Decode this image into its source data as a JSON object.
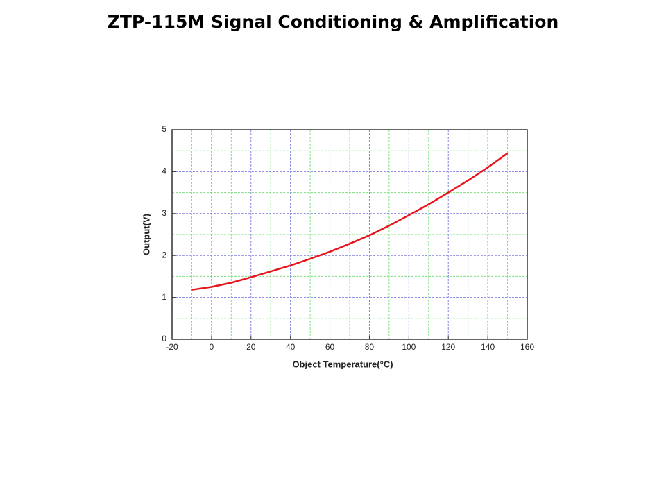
{
  "chart_data": {
    "type": "line",
    "title": "ZTP-115M Signal Conditioning & Amplification",
    "x_label": "Object Temperature(°C)",
    "y_label": "Output(V)",
    "x": [
      -10,
      0,
      10,
      20,
      30,
      40,
      50,
      60,
      70,
      80,
      90,
      100,
      110,
      120,
      130,
      140,
      150
    ],
    "series": [
      {
        "name": "Output",
        "color": "#e8141c",
        "values": [
          1.18,
          1.25,
          1.35,
          1.48,
          1.62,
          1.76,
          1.92,
          2.09,
          2.28,
          2.48,
          2.71,
          2.96,
          3.22,
          3.5,
          3.79,
          4.1,
          4.44
        ]
      }
    ],
    "xlim": [
      -20,
      160
    ],
    "xticks": [
      -20,
      0,
      20,
      40,
      60,
      80,
      100,
      120,
      140,
      160
    ],
    "ylim": [
      0,
      5
    ],
    "yticks": [
      0,
      1,
      2,
      3,
      4,
      5
    ],
    "grid": true
  }
}
